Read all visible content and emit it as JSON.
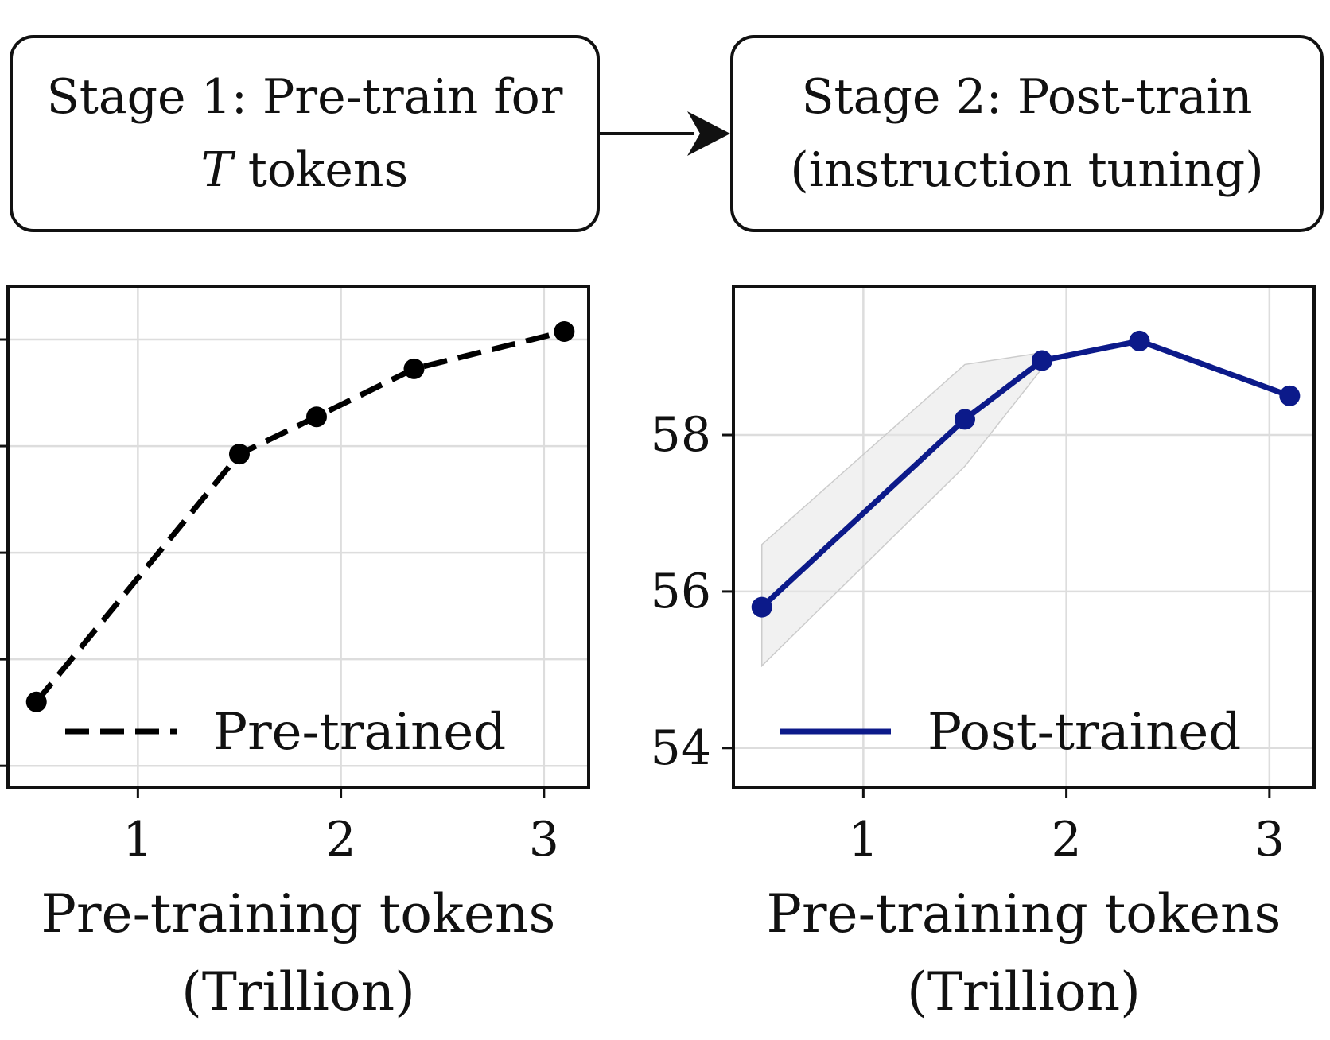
{
  "flow": {
    "stage1": {
      "line1": "Stage 1: Pre-train for",
      "var": "T",
      "line2_rest": " tokens"
    },
    "stage2": {
      "line1": "Stage 2: Post-train",
      "line2": "(instruction tuning)"
    }
  },
  "chart_data": [
    {
      "type": "line",
      "x": [
        0.5,
        1.5,
        1.88,
        2.36,
        3.1
      ],
      "series": [
        {
          "name": "Pre-trained",
          "values": [
            40.7,
            45.35,
            46.05,
            46.95,
            47.65
          ],
          "color": "#000000",
          "dash": "dashed"
        }
      ],
      "xlabel": "Pre-training tokens\n(Trillion)",
      "xlabel_lines": [
        "Pre-training tokens",
        "(Trillion)"
      ],
      "ylabel": "",
      "xticks": [
        1,
        2,
        3
      ],
      "xlim": [
        0.36,
        3.22
      ],
      "ylim": [
        39.1,
        48.5
      ],
      "yticks": [
        39.5,
        41.5,
        43.5,
        45.5,
        47.5
      ],
      "ytick_labels_visible": false,
      "grid": true,
      "legend": "lower-center"
    },
    {
      "type": "line",
      "x": [
        0.5,
        1.5,
        1.88,
        2.36,
        3.1
      ],
      "series": [
        {
          "name": "Post-trained",
          "values": [
            55.8,
            58.2,
            58.95,
            59.2,
            58.5
          ],
          "color": "#0c1a8a",
          "dash": "solid"
        }
      ],
      "band": {
        "x": [
          0.5,
          1.5,
          1.88
        ],
        "upper": [
          56.6,
          58.9,
          59.05
        ],
        "lower": [
          55.05,
          57.6,
          58.85
        ]
      },
      "xlabel": "Pre-training tokens\n(Trillion)",
      "xlabel_lines": [
        "Pre-training tokens",
        "(Trillion)"
      ],
      "ylabel": "",
      "xticks": [
        1,
        2,
        3
      ],
      "xlim": [
        0.36,
        3.22
      ],
      "ylim": [
        53.5,
        59.9
      ],
      "yticks": [
        54,
        56,
        58
      ],
      "ytick_labels_visible": true,
      "grid": true,
      "legend": "lower-center"
    }
  ]
}
